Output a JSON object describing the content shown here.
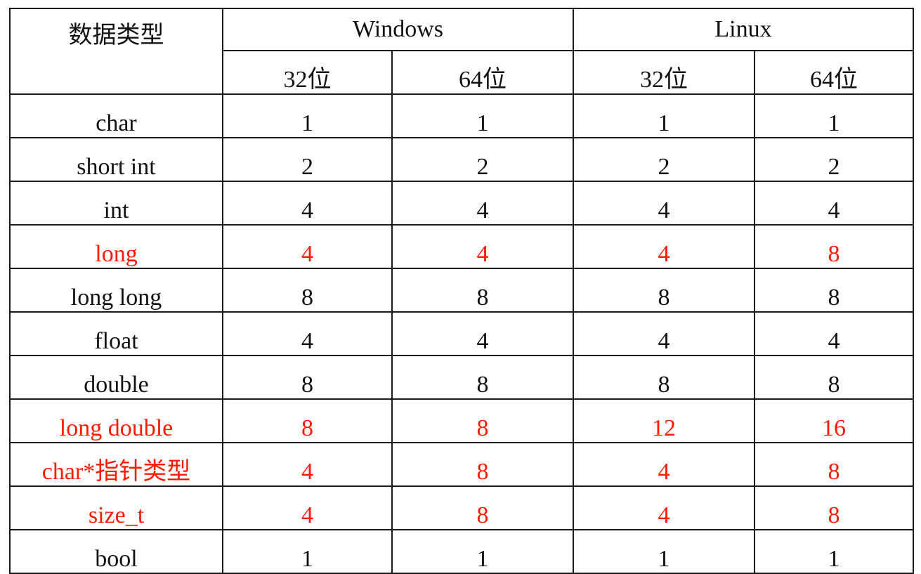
{
  "table": {
    "header": {
      "data_type": "数据类型",
      "windows": "Windows",
      "linux": "Linux",
      "bits": [
        "32位",
        "64位",
        "32位",
        "64位"
      ]
    },
    "highlight_color": "#ff1a00",
    "default_color": "#111111",
    "rows": [
      {
        "type": "char",
        "values": [
          "1",
          "1",
          "1",
          "1"
        ],
        "highlight": false
      },
      {
        "type": "short int",
        "values": [
          "2",
          "2",
          "2",
          "2"
        ],
        "highlight": false
      },
      {
        "type": "int",
        "values": [
          "4",
          "4",
          "4",
          "4"
        ],
        "highlight": false
      },
      {
        "type": "long",
        "values": [
          "4",
          "4",
          "4",
          "8"
        ],
        "highlight": true
      },
      {
        "type": "long long",
        "values": [
          "8",
          "8",
          "8",
          "8"
        ],
        "highlight": false
      },
      {
        "type": "float",
        "values": [
          "4",
          "4",
          "4",
          "4"
        ],
        "highlight": false
      },
      {
        "type": "double",
        "values": [
          "8",
          "8",
          "8",
          "8"
        ],
        "highlight": false
      },
      {
        "type": "long double",
        "values": [
          "8",
          "8",
          "12",
          "16"
        ],
        "highlight": true
      },
      {
        "type": "char*指针类型",
        "values": [
          "4",
          "8",
          "4",
          "8"
        ],
        "highlight": true
      },
      {
        "type": "size_t",
        "values": [
          "4",
          "8",
          "4",
          "8"
        ],
        "highlight": true
      },
      {
        "type": "bool",
        "values": [
          "1",
          "1",
          "1",
          "1"
        ],
        "highlight": false
      }
    ]
  }
}
